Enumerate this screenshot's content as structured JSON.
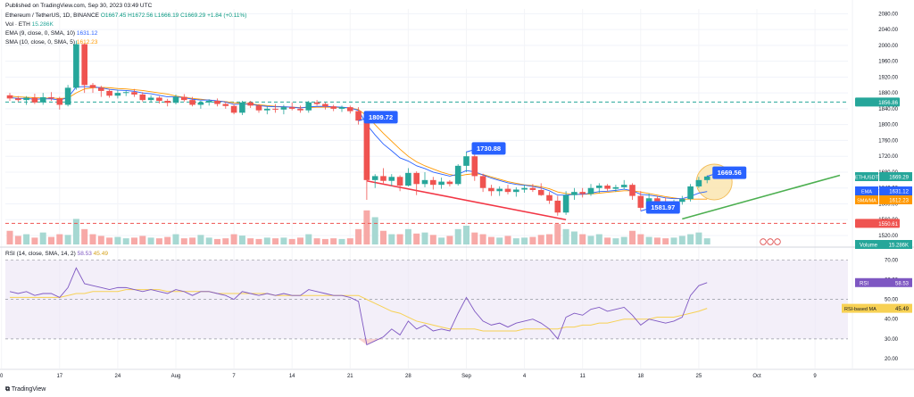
{
  "header": {
    "published": "Published on TradingView.com, Sep 30, 2023 03:49 UTC",
    "symbol": "Ethereum / TetherUS, 1D, BINANCE",
    "ohlc": "O1667.45 H1672.56 L1666.19 C1669.29 +1.84 (+0.11%)",
    "vol_label": "Vol · ETH",
    "vol_value": "15.286K",
    "ema_label": "EMA (9, close, 0, SMA, 10)",
    "ema_value": "1631.12",
    "sma_label": "SMA (10, close, 0, SMA, 5)",
    "sma_value": "1612.23",
    "rsi_label": "RSI (14, close, SMA, 14, 2)",
    "rsi_value": "58.53",
    "rsi_ma_value": "45.49"
  },
  "footer": {
    "brand": "TradingView"
  },
  "colors": {
    "up": "#26a69a",
    "down": "#ef5350",
    "ema": "#2962ff",
    "sma": "#ff9800",
    "rsi": "#7e57c2",
    "rsi_ma": "#f7d154",
    "green_line": "#4caf50",
    "red_line": "#f23645",
    "label_blue": "#2962ff",
    "circle": "#fbe7b5"
  },
  "chart_data": {
    "type": "candlestick",
    "x_ticks": [
      "0",
      "17",
      "24",
      "Aug",
      "7",
      "14",
      "21",
      "28",
      "Sep",
      "4",
      "11",
      "18",
      "25",
      "Oct",
      "9"
    ],
    "price_ticks": [
      1520,
      1560,
      1600,
      1640,
      1680,
      1720,
      1760,
      1800,
      1840,
      1880,
      1920,
      1960,
      2000,
      2040,
      2080
    ],
    "price_range": [
      1502,
      2092
    ],
    "rsi_ticks": [
      20,
      30,
      40,
      50,
      60,
      70
    ],
    "rsi_range": [
      15,
      72
    ],
    "candles": [
      [
        1874,
        1880,
        1860,
        1866
      ],
      [
        1866,
        1872,
        1858,
        1862
      ],
      [
        1862,
        1872,
        1850,
        1868
      ],
      [
        1868,
        1878,
        1852,
        1856
      ],
      [
        1856,
        1880,
        1850,
        1869
      ],
      [
        1869,
        1882,
        1860,
        1866
      ],
      [
        1866,
        1870,
        1838,
        1850
      ],
      [
        1850,
        1900,
        1846,
        1893
      ],
      [
        1893,
        2012,
        1888,
        2003
      ],
      [
        2003,
        2005,
        1880,
        1900
      ],
      [
        1900,
        1905,
        1880,
        1893
      ],
      [
        1893,
        1898,
        1870,
        1885
      ],
      [
        1885,
        1890,
        1868,
        1873
      ],
      [
        1873,
        1888,
        1866,
        1880
      ],
      [
        1880,
        1886,
        1872,
        1882
      ],
      [
        1882,
        1890,
        1870,
        1876
      ],
      [
        1876,
        1882,
        1858,
        1862
      ],
      [
        1862,
        1874,
        1856,
        1868
      ],
      [
        1868,
        1872,
        1853,
        1860
      ],
      [
        1860,
        1865,
        1846,
        1855
      ],
      [
        1855,
        1876,
        1851,
        1870
      ],
      [
        1870,
        1877,
        1858,
        1862
      ],
      [
        1862,
        1870,
        1846,
        1850
      ],
      [
        1850,
        1860,
        1840,
        1856
      ],
      [
        1856,
        1864,
        1848,
        1860
      ],
      [
        1860,
        1866,
        1846,
        1852
      ],
      [
        1852,
        1858,
        1840,
        1847
      ],
      [
        1847,
        1852,
        1826,
        1830
      ],
      [
        1830,
        1860,
        1824,
        1856
      ],
      [
        1856,
        1860,
        1842,
        1848
      ],
      [
        1848,
        1852,
        1830,
        1836
      ],
      [
        1836,
        1846,
        1826,
        1840
      ],
      [
        1840,
        1852,
        1830,
        1838
      ],
      [
        1838,
        1850,
        1826,
        1844
      ],
      [
        1844,
        1856,
        1836,
        1840
      ],
      [
        1840,
        1848,
        1830,
        1836
      ],
      [
        1836,
        1860,
        1830,
        1856
      ],
      [
        1856,
        1862,
        1848,
        1852
      ],
      [
        1852,
        1856,
        1838,
        1846
      ],
      [
        1846,
        1850,
        1834,
        1840
      ],
      [
        1840,
        1848,
        1832,
        1844
      ],
      [
        1844,
        1848,
        1828,
        1834
      ],
      [
        1834,
        1844,
        1800,
        1810
      ],
      [
        1810,
        1812,
        1610,
        1660
      ],
      [
        1660,
        1675,
        1640,
        1670
      ],
      [
        1670,
        1690,
        1652,
        1658
      ],
      [
        1658,
        1675,
        1645,
        1668
      ],
      [
        1668,
        1672,
        1632,
        1646
      ],
      [
        1646,
        1690,
        1644,
        1678
      ],
      [
        1678,
        1682,
        1622,
        1650
      ],
      [
        1650,
        1680,
        1642,
        1660
      ],
      [
        1660,
        1668,
        1636,
        1648
      ],
      [
        1648,
        1666,
        1638,
        1656
      ],
      [
        1656,
        1660,
        1644,
        1650
      ],
      [
        1650,
        1700,
        1646,
        1696
      ],
      [
        1696,
        1732,
        1680,
        1720
      ],
      [
        1720,
        1728,
        1658,
        1670
      ],
      [
        1670,
        1676,
        1630,
        1640
      ],
      [
        1640,
        1648,
        1620,
        1632
      ],
      [
        1632,
        1644,
        1620,
        1638
      ],
      [
        1638,
        1648,
        1624,
        1630
      ],
      [
        1630,
        1642,
        1618,
        1636
      ],
      [
        1636,
        1648,
        1628,
        1640
      ],
      [
        1640,
        1650,
        1630,
        1635
      ],
      [
        1635,
        1652,
        1620,
        1622
      ],
      [
        1622,
        1630,
        1600,
        1608
      ],
      [
        1608,
        1620,
        1570,
        1578
      ],
      [
        1578,
        1632,
        1572,
        1622
      ],
      [
        1622,
        1640,
        1610,
        1630
      ],
      [
        1630,
        1640,
        1616,
        1625
      ],
      [
        1625,
        1650,
        1620,
        1640
      ],
      [
        1640,
        1652,
        1628,
        1646
      ],
      [
        1646,
        1650,
        1632,
        1638
      ],
      [
        1638,
        1648,
        1630,
        1642
      ],
      [
        1642,
        1660,
        1636,
        1648
      ],
      [
        1648,
        1652,
        1610,
        1620
      ],
      [
        1620,
        1632,
        1582,
        1590
      ],
      [
        1590,
        1626,
        1588,
        1614
      ],
      [
        1614,
        1620,
        1600,
        1606
      ],
      [
        1606,
        1616,
        1596,
        1598
      ],
      [
        1598,
        1610,
        1592,
        1605
      ],
      [
        1605,
        1620,
        1598,
        1612
      ],
      [
        1612,
        1650,
        1606,
        1644
      ],
      [
        1644,
        1668,
        1640,
        1660
      ],
      [
        1660,
        1672,
        1652,
        1669
      ]
    ],
    "volume": [
      40,
      25,
      30,
      20,
      35,
      22,
      30,
      28,
      75,
      45,
      30,
      25,
      20,
      22,
      18,
      20,
      25,
      20,
      18,
      22,
      30,
      18,
      20,
      28,
      20,
      16,
      18,
      30,
      26,
      18,
      16,
      20,
      18,
      20,
      16,
      20,
      30,
      18,
      16,
      18,
      16,
      18,
      45,
      100,
      80,
      40,
      30,
      30,
      45,
      32,
      35,
      28,
      20,
      25,
      45,
      55,
      35,
      30,
      22,
      20,
      25,
      18,
      20,
      22,
      28,
      30,
      60,
      45,
      38,
      30,
      25,
      30,
      20,
      18,
      22,
      40,
      30,
      22,
      20,
      18,
      20,
      25,
      30,
      35,
      18
    ],
    "volume_max": 110,
    "ema": [
      1868,
      1866,
      1866,
      1864,
      1865,
      1865,
      1862,
      1868,
      1895,
      1896,
      1895,
      1893,
      1889,
      1887,
      1886,
      1884,
      1880,
      1878,
      1874,
      1870,
      1870,
      1868,
      1864,
      1862,
      1862,
      1860,
      1857,
      1851,
      1852,
      1851,
      1848,
      1846,
      1845,
      1845,
      1844,
      1842,
      1845,
      1846,
      1846,
      1845,
      1844,
      1842,
      1836,
      1800,
      1774,
      1751,
      1734,
      1716,
      1708,
      1696,
      1689,
      1680,
      1675,
      1670,
      1675,
      1684,
      1681,
      1673,
      1665,
      1659,
      1653,
      1649,
      1647,
      1644,
      1640,
      1633,
      1622,
      1622,
      1624,
      1624,
      1627,
      1631,
      1632,
      1634,
      1637,
      1633,
      1624,
      1622,
      1619,
      1615,
      1613,
      1613,
      1619,
      1627,
      1631
    ],
    "sma": [
      1872,
      1870,
      1869,
      1868,
      1867,
      1867,
      1866,
      1867,
      1880,
      1890,
      1893,
      1894,
      1893,
      1891,
      1890,
      1888,
      1886,
      1883,
      1880,
      1877,
      1872,
      1869,
      1866,
      1864,
      1862,
      1860,
      1858,
      1855,
      1854,
      1852,
      1850,
      1848,
      1846,
      1845,
      1844,
      1843,
      1843,
      1844,
      1844,
      1844,
      1843,
      1842,
      1838,
      1822,
      1800,
      1778,
      1758,
      1738,
      1720,
      1706,
      1696,
      1688,
      1680,
      1674,
      1670,
      1674,
      1676,
      1674,
      1668,
      1662,
      1656,
      1652,
      1648,
      1646,
      1643,
      1638,
      1630,
      1626,
      1624,
      1624,
      1625,
      1627,
      1629,
      1631,
      1633,
      1633,
      1630,
      1626,
      1622,
      1618,
      1615,
      1612,
      1612,
      1612,
      1612
    ],
    "rsi": [
      54,
      53,
      54,
      52,
      53,
      53,
      51,
      56,
      66,
      58,
      57,
      56,
      55,
      56,
      56,
      55,
      54,
      55,
      54,
      53,
      55,
      54,
      52,
      54,
      54,
      53,
      52,
      50,
      54,
      53,
      52,
      53,
      52,
      53,
      52,
      52,
      55,
      54,
      53,
      52,
      52,
      51,
      49,
      27,
      29,
      31,
      35,
      32,
      39,
      35,
      37,
      34,
      35,
      34,
      43,
      51,
      44,
      39,
      37,
      38,
      36,
      38,
      39,
      40,
      38,
      35,
      30,
      41,
      43,
      42,
      45,
      46,
      44,
      45,
      46,
      42,
      37,
      40,
      39,
      38,
      39,
      41,
      52,
      57,
      58.53
    ],
    "rsi_ma": [
      51,
      51,
      51,
      51,
      51,
      51,
      51,
      52,
      53,
      53,
      54,
      54,
      54,
      54,
      55,
      55,
      55,
      55,
      55,
      54,
      54,
      54,
      54,
      54,
      54,
      53,
      53,
      53,
      53,
      53,
      53,
      53,
      52,
      52,
      52,
      52,
      52,
      52,
      52,
      52,
      52,
      52,
      52,
      50,
      48,
      46,
      44,
      43,
      41,
      39,
      38,
      37,
      36,
      35,
      35,
      35,
      35,
      34,
      34,
      34,
      34,
      34,
      35,
      35,
      35,
      35,
      35,
      36,
      36,
      37,
      37,
      38,
      38,
      39,
      40,
      40,
      40,
      40,
      41,
      41,
      41,
      42,
      43,
      44,
      45.49
    ],
    "hlines": [
      {
        "value": 1856.86,
        "label": "1856.86",
        "color": "#26a69a"
      },
      {
        "value": 1550.61,
        "label": "1550.61",
        "color": "#ef5350"
      }
    ],
    "price_labels": [
      {
        "label": "ETHUSDT",
        "value": "1669.29",
        "price": 1669.29,
        "color": "#26a69a"
      },
      {
        "label": "EMA",
        "value": "1631.12",
        "price": 1631.12,
        "color": "#2962ff"
      },
      {
        "label": "SMA/MA",
        "value": "1612.23",
        "price": 1612.23,
        "color": "#ff9800"
      }
    ],
    "volume_label": {
      "label": "Volume",
      "value": "15.286K"
    },
    "rsi_labels": [
      {
        "label": "RSI",
        "value": "58.53",
        "rsi": 58.53,
        "color": "#7e57c2"
      },
      {
        "label": "RSI-based MA",
        "value": "45.49",
        "rsi": 45.49,
        "color": "#f7d154"
      }
    ],
    "annotations": [
      {
        "text": "1809.72",
        "candle": 42,
        "price": 1809.72
      },
      {
        "text": "1730.88",
        "candle": 55,
        "price": 1730.88
      },
      {
        "text": "1581.97",
        "candle": 76,
        "price": 1581.97
      },
      {
        "text": "1669.56",
        "candle": 84,
        "price": 1669.56
      }
    ],
    "trend_lines": [
      {
        "from": [
          43,
          1658
        ],
        "to": [
          67,
          1560
        ],
        "color": "#f23645"
      },
      {
        "from": [
          81,
          1562
        ],
        "to": [
          100,
          1672
        ],
        "color": "#4caf50"
      }
    ]
  }
}
